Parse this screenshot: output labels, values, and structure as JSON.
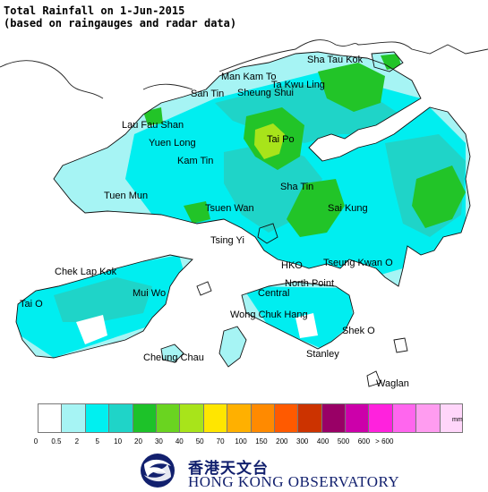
{
  "header": {
    "title": "Total Rainfall on 1-Jun-2015",
    "subtitle": "(based on raingauges and radar data)"
  },
  "map": {
    "place_names": [
      "Sha Tau Kok",
      "Man Kam To",
      "Ta Kwu Ling",
      "San Tin",
      "Sheung Shui",
      "Lau Fau Shan",
      "Tai Po",
      "Yuen Long",
      "Kam Tin",
      "Tuen Mun",
      "Sha Tin",
      "Tsuen Wan",
      "Sai Kung",
      "Tsing Yi",
      "Chek Lap Kok",
      "HKO",
      "Tseung Kwan O",
      "Tai O",
      "Mui Wo",
      "North Point",
      "Central",
      "Wong Chuk Hang",
      "Shek O",
      "Cheung Chau",
      "Stanley",
      "Waglan"
    ],
    "colors": {
      "land_outline": "#000000",
      "sea": "#ffffff",
      "light_cyan": "#a6f4f4",
      "cyan": "#00e8ec",
      "teal": "#1fd4c8",
      "green": "#22c428",
      "yellow_green": "#a8e41a"
    }
  },
  "legend": {
    "unit": "mm",
    "tick_labels": [
      "0",
      "0.5",
      "2",
      "5",
      "10",
      "20",
      "30",
      "40",
      "50",
      "70",
      "100",
      "150",
      "200",
      "300",
      "400",
      "500",
      "600",
      "> 600"
    ],
    "colors": [
      "#ffffff",
      "#a6f4f4",
      "#00f0f0",
      "#1fd4c8",
      "#1dc229",
      "#6ad420",
      "#a8e41a",
      "#ffe600",
      "#ffb000",
      "#ff8a00",
      "#ff5a00",
      "#cc3300",
      "#990066",
      "#cc00aa",
      "#ff22dd",
      "#ff66ee",
      "#ff9cf0",
      "#ffd6fa"
    ]
  },
  "branding": {
    "org_name_cn": "香港天文台",
    "org_name_en": "HONG KONG OBSERVATORY"
  }
}
